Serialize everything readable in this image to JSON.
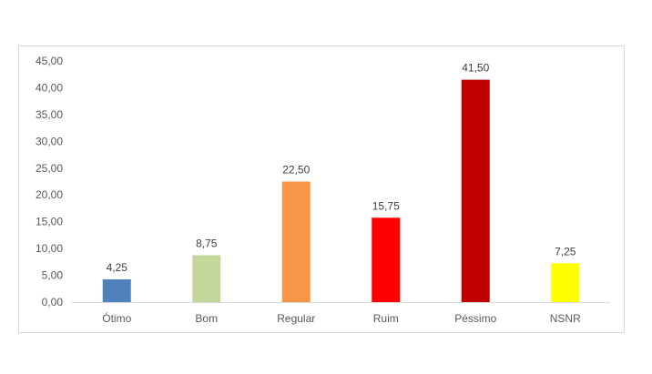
{
  "chart_data": {
    "type": "bar",
    "categories": [
      "Ótimo",
      "Bom",
      "Regular",
      "Ruim",
      "Péssimo",
      "NSNR"
    ],
    "values": [
      4.25,
      8.75,
      22.5,
      15.75,
      41.5,
      7.25
    ],
    "data_labels": [
      "4,25",
      "8,75",
      "22,50",
      "15,75",
      "41,50",
      "7,25"
    ],
    "bar_colors": [
      "#4f81bd",
      "#c4d79b",
      "#f79646",
      "#ff0000",
      "#c00000",
      "#ffff00"
    ],
    "title": "",
    "xlabel": "",
    "ylabel": "",
    "ylim": [
      0,
      45
    ],
    "yticks": [
      0,
      5,
      10,
      15,
      20,
      25,
      30,
      35,
      40,
      45
    ],
    "ytick_labels": [
      "0,00",
      "5,00",
      "10,00",
      "15,00",
      "20,00",
      "25,00",
      "30,00",
      "35,00",
      "40,00",
      "45,00"
    ],
    "grid": false,
    "legend": "none"
  }
}
